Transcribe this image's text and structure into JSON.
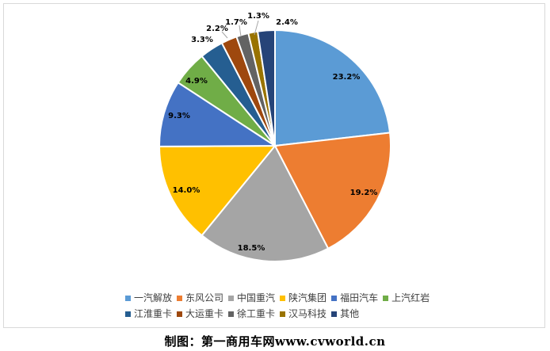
{
  "chart_data": {
    "type": "pie",
    "title": "",
    "slices": [
      {
        "name": "一汽解放",
        "value": 23.2,
        "label": "23.2%",
        "color": "#5B9BD5"
      },
      {
        "name": "东风公司",
        "value": 19.2,
        "label": "19.2%",
        "color": "#ED7D31"
      },
      {
        "name": "中国重汽",
        "value": 18.5,
        "label": "18.5%",
        "color": "#A5A5A5"
      },
      {
        "name": "陕汽集团",
        "value": 14.0,
        "label": "14.0%",
        "color": "#FFC000"
      },
      {
        "name": "福田汽车",
        "value": 9.3,
        "label": "9.3%",
        "color": "#4472C4"
      },
      {
        "name": "上汽红岩",
        "value": 4.9,
        "label": "4.9%",
        "color": "#70AD47"
      },
      {
        "name": "江淮重卡",
        "value": 3.3,
        "label": "3.3%",
        "color": "#255E91"
      },
      {
        "name": "大运重卡",
        "value": 2.2,
        "label": "2.2%",
        "color": "#9E480E"
      },
      {
        "name": "徐工重卡",
        "value": 1.7,
        "label": "1.7%",
        "color": "#636363"
      },
      {
        "name": "汉马科技",
        "value": 1.3,
        "label": "1.3%",
        "color": "#997300"
      },
      {
        "name": "其他",
        "value": 2.4,
        "label": "2.4%",
        "color": "#264478"
      }
    ],
    "legend": {
      "position": "bottom",
      "rows": [
        [
          "一汽解放",
          "东风公司",
          "中国重汽",
          "陕汽集团",
          "福田汽车",
          "上汽红岩"
        ],
        [
          "江淮重卡",
          "大运重卡",
          "徐工重卡",
          "汉马科技",
          "其他"
        ]
      ]
    }
  },
  "caption": {
    "text": "制图：第一商用车网www.cvworld.cn"
  }
}
